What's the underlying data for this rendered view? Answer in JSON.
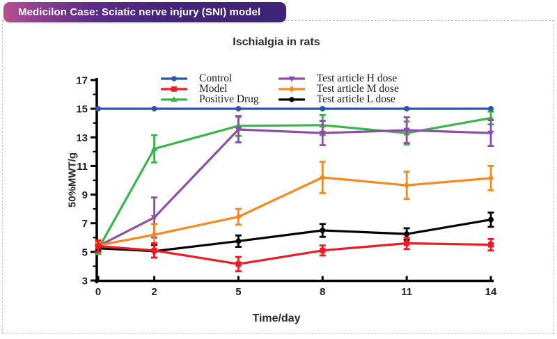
{
  "banner": {
    "label": "Medicilon Case: Sciatic nerve injury (SNI) model",
    "gradient_left": "#b7508f",
    "gradient_right": "#3e2376"
  },
  "chart_data": {
    "type": "line",
    "title": "Ischialgia in rats",
    "xlabel": "Time/day",
    "ylabel": "50%MWT/g",
    "x": [
      0,
      2,
      5,
      8,
      11,
      14
    ],
    "xticks": [
      0,
      2,
      5,
      8,
      11,
      14
    ],
    "yticks": [
      3,
      5,
      7,
      9,
      11,
      13,
      15,
      17
    ],
    "yminorticks": [
      4,
      6,
      8,
      10,
      12,
      14,
      16
    ],
    "xlim": [
      0,
      14
    ],
    "ylim": [
      3,
      17
    ],
    "grid": false,
    "legend_position": "top-inside-two-columns",
    "error_bars": true,
    "series": [
      {
        "name": "Control",
        "color": "#2b55a5",
        "marker": "circle",
        "values": [
          15,
          15,
          15,
          15,
          15,
          15
        ],
        "errors": [
          0,
          0,
          0,
          0,
          0,
          0
        ]
      },
      {
        "name": "Model",
        "color": "#ec1c24",
        "marker": "square",
        "values": [
          5.4,
          5.1,
          4.15,
          5.1,
          5.6,
          5.5
        ],
        "errors": [
          0.4,
          0.5,
          0.5,
          0.35,
          0.4,
          0.4
        ]
      },
      {
        "name": "Positive Drug",
        "color": "#3bb54a",
        "marker": "triangle-up",
        "values": [
          5.2,
          12.2,
          13.8,
          13.85,
          13.3,
          14.35
        ],
        "errors": [
          0.35,
          0.95,
          0.7,
          0.7,
          0.8,
          0.45
        ]
      },
      {
        "name": "Test article H dose",
        "color": "#8c4fa8",
        "marker": "triangle-down",
        "values": [
          5.4,
          7.4,
          13.55,
          13.3,
          13.5,
          13.3
        ],
        "errors": [
          0.25,
          1.4,
          0.9,
          0.85,
          0.9,
          0.9
        ]
      },
      {
        "name": "Test article M dose",
        "color": "#f6881f",
        "marker": "diamond",
        "values": [
          5.45,
          6.2,
          7.45,
          10.2,
          9.65,
          10.15
        ],
        "errors": [
          0.2,
          0.75,
          0.55,
          1.1,
          0.95,
          0.85
        ]
      },
      {
        "name": "Test article L dose",
        "color": "#000000",
        "marker": "circle",
        "values": [
          5.25,
          5.05,
          5.75,
          6.5,
          6.25,
          7.25
        ],
        "errors": [
          0.2,
          0.45,
          0.4,
          0.45,
          0.4,
          0.5
        ]
      }
    ],
    "legend_columns": [
      [
        0,
        1,
        2
      ],
      [
        3,
        4,
        5
      ]
    ]
  }
}
